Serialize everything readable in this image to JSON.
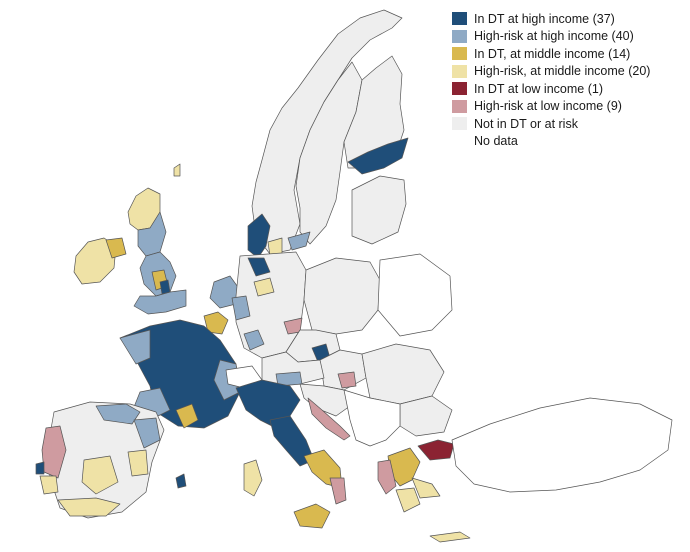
{
  "legend": {
    "items": [
      {
        "key": "dt_high",
        "label": "In DT at high income (37)",
        "color": "#1f4e79"
      },
      {
        "key": "risk_high",
        "label": "High-risk at high income (40)",
        "color": "#8faac5"
      },
      {
        "key": "dt_middle",
        "label": "In DT, at middle income (14)",
        "color": "#d9b94f"
      },
      {
        "key": "risk_middle",
        "label": "High-risk, at middle income (20)",
        "color": "#efe2a6"
      },
      {
        "key": "dt_low",
        "label": "In DT at low income (1)",
        "color": "#8b2332"
      },
      {
        "key": "risk_low",
        "label": "High-risk at low income (9)",
        "color": "#cf9ba0"
      },
      {
        "key": "none",
        "label": "Not in DT or at risk",
        "color": "#eeeeee"
      },
      {
        "key": "nodata",
        "label": "No data",
        "color": "#ffffff"
      }
    ]
  },
  "map": {
    "border_color": "#555555",
    "default_fill": "#eeeeee"
  }
}
